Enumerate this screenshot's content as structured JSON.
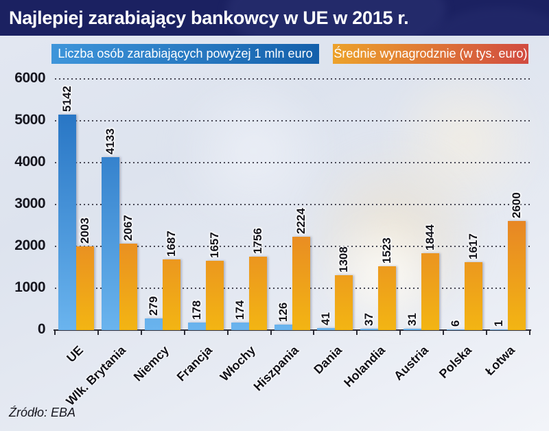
{
  "header": {
    "title": "Najlepiej zarabiający bankowcy w UE w 2015 r."
  },
  "legend": {
    "series1": "Liczba osób zarabiających powyżej 1 mln euro",
    "series2": "Średnie wynagrodznie (w tys. euro)"
  },
  "footer": {
    "source": "Źródło: EBA"
  },
  "colors": {
    "header_bg": "#1b2161",
    "blue_top": "#1e6cbe",
    "blue_bottom": "#6ab4ee",
    "orange_top": "#d84a3c",
    "orange_bottom": "#f3b513",
    "legend_blue_left": "#3e95da",
    "legend_blue_right": "#1460ab",
    "legend_orange_left": "#eca22b",
    "legend_orange_right": "#d14b41"
  },
  "chart_data": {
    "type": "bar",
    "title": "Najlepiej zarabiający bankowcy w UE w 2015 r.",
    "categories": [
      "UE",
      "Wlk. Brytania",
      "Niemcy",
      "Francja",
      "Włochy",
      "Hiszpania",
      "Dania",
      "Holandia",
      "Austria",
      "Polska",
      "Łotwa"
    ],
    "series": [
      {
        "name": "Liczba osób zarabiających powyżej 1 mln euro",
        "color": "blue",
        "values": [
          5142,
          4133,
          279,
          178,
          174,
          126,
          41,
          37,
          31,
          6,
          1
        ]
      },
      {
        "name": "Średnie wynagrodznie (w tys. euro)",
        "color": "orange",
        "values": [
          2003,
          2067,
          1687,
          1657,
          1756,
          2224,
          1308,
          1523,
          1844,
          1617,
          2600
        ]
      }
    ],
    "ylim": [
      0,
      6000
    ],
    "yticks": [
      0,
      1000,
      2000,
      3000,
      4000,
      5000,
      6000
    ],
    "grid": "horizontal-dotted",
    "legend_position": "top",
    "value_labels": "rotated-90",
    "category_labels": "rotated-45",
    "source": "Źródło: EBA"
  }
}
